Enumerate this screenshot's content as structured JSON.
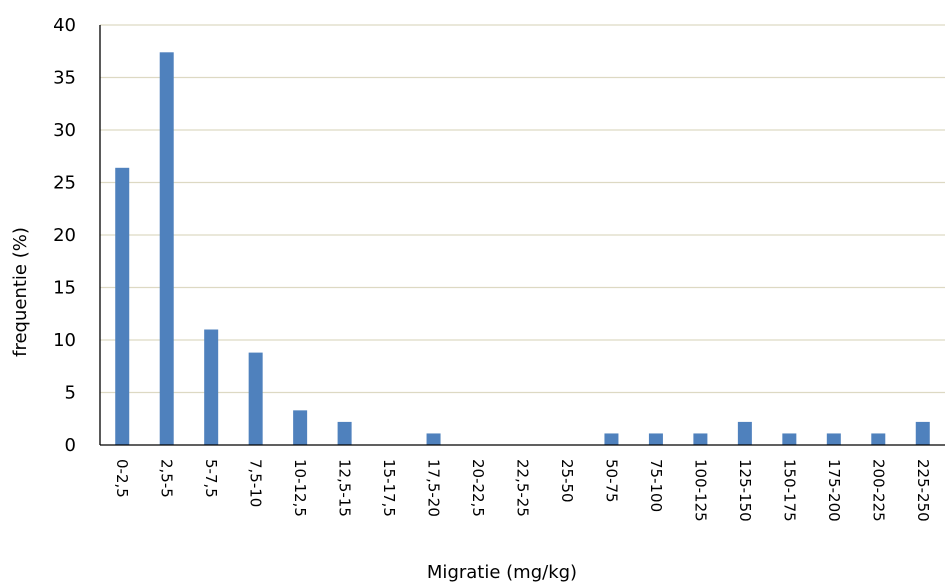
{
  "chart_data": {
    "type": "bar",
    "title": "",
    "xlabel": "Migratie (mg/kg)",
    "ylabel": "frequentie (%)",
    "ylim": [
      0,
      40
    ],
    "yticks": [
      "0",
      "5",
      "10",
      "15",
      "20",
      "25",
      "30",
      "35",
      "40"
    ],
    "categories": [
      "0-2,5",
      "2,5-5",
      "5-7,5",
      "7,5-10",
      "10-12,5",
      "12,5-15",
      "15-17,5",
      "17,5-20",
      "20-22,5",
      "22,5-25",
      "25-50",
      "50-75",
      "75-100",
      "100-125",
      "125-150",
      "150-175",
      "175-200",
      "200-225",
      "225-250"
    ],
    "values": [
      26.4,
      37.4,
      11.0,
      8.8,
      3.3,
      2.2,
      0,
      1.1,
      0,
      0,
      0,
      1.1,
      1.1,
      1.1,
      2.2,
      1.1,
      1.1,
      1.1,
      2.2
    ],
    "grid": true,
    "legend": "none",
    "colors": {
      "bar": "#4F81BD",
      "grid": "#DDD9C3",
      "axis": "#000000"
    }
  }
}
